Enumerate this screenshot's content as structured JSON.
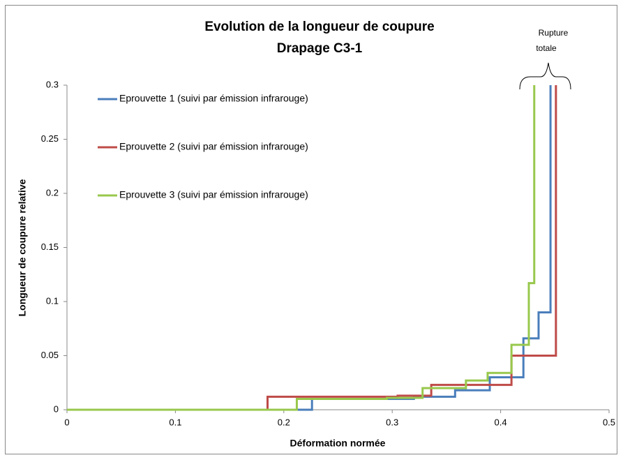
{
  "chart_data": {
    "type": "line",
    "title": "Evolution de la longueur de coupure",
    "subtitle": "Drapage C3-1",
    "xlabel": "Déformation normée",
    "ylabel": "Longueur de coupure relative",
    "annotation": [
      "Rupture",
      "totale"
    ],
    "xlim": [
      0,
      0.5
    ],
    "xticks": [
      0,
      0.1,
      0.2,
      0.3,
      0.4,
      0.5
    ],
    "ylim": [
      0,
      0.3
    ],
    "yticks": [
      0,
      0.05,
      0.1,
      0.15,
      0.2,
      0.25,
      0.3
    ],
    "grid": false,
    "legend": "upper left",
    "series": [
      {
        "name": "Eprouvette 1 (suivi par émission infrarouge)",
        "color": "#4a7ebb",
        "x": [
          0,
          0.226,
          0.226,
          0.32,
          0.32,
          0.358,
          0.358,
          0.39,
          0.39,
          0.421,
          0.421,
          0.435,
          0.435,
          0.446,
          0.446
        ],
        "values": [
          0,
          0,
          0.01,
          0.01,
          0.012,
          0.012,
          0.018,
          0.018,
          0.03,
          0.03,
          0.066,
          0.066,
          0.09,
          0.09,
          0.3
        ]
      },
      {
        "name": "Eprouvette 2 (suivi par émission infrarouge)",
        "color": "#be4b48",
        "x": [
          0,
          0.185,
          0.185,
          0.305,
          0.305,
          0.336,
          0.336,
          0.41,
          0.41,
          0.451,
          0.451
        ],
        "values": [
          0,
          0,
          0.012,
          0.012,
          0.013,
          0.013,
          0.023,
          0.023,
          0.05,
          0.05,
          0.3
        ]
      },
      {
        "name": "Eprouvette 3 (suivi par émission infrarouge)",
        "color": "#98c84c",
        "x": [
          0,
          0.212,
          0.212,
          0.295,
          0.295,
          0.328,
          0.328,
          0.368,
          0.368,
          0.388,
          0.388,
          0.41,
          0.41,
          0.426,
          0.426,
          0.431,
          0.431
        ],
        "values": [
          0,
          0,
          0.01,
          0.01,
          0.011,
          0.011,
          0.02,
          0.02,
          0.027,
          0.027,
          0.034,
          0.034,
          0.06,
          0.06,
          0.117,
          0.117,
          0.3
        ]
      }
    ]
  }
}
